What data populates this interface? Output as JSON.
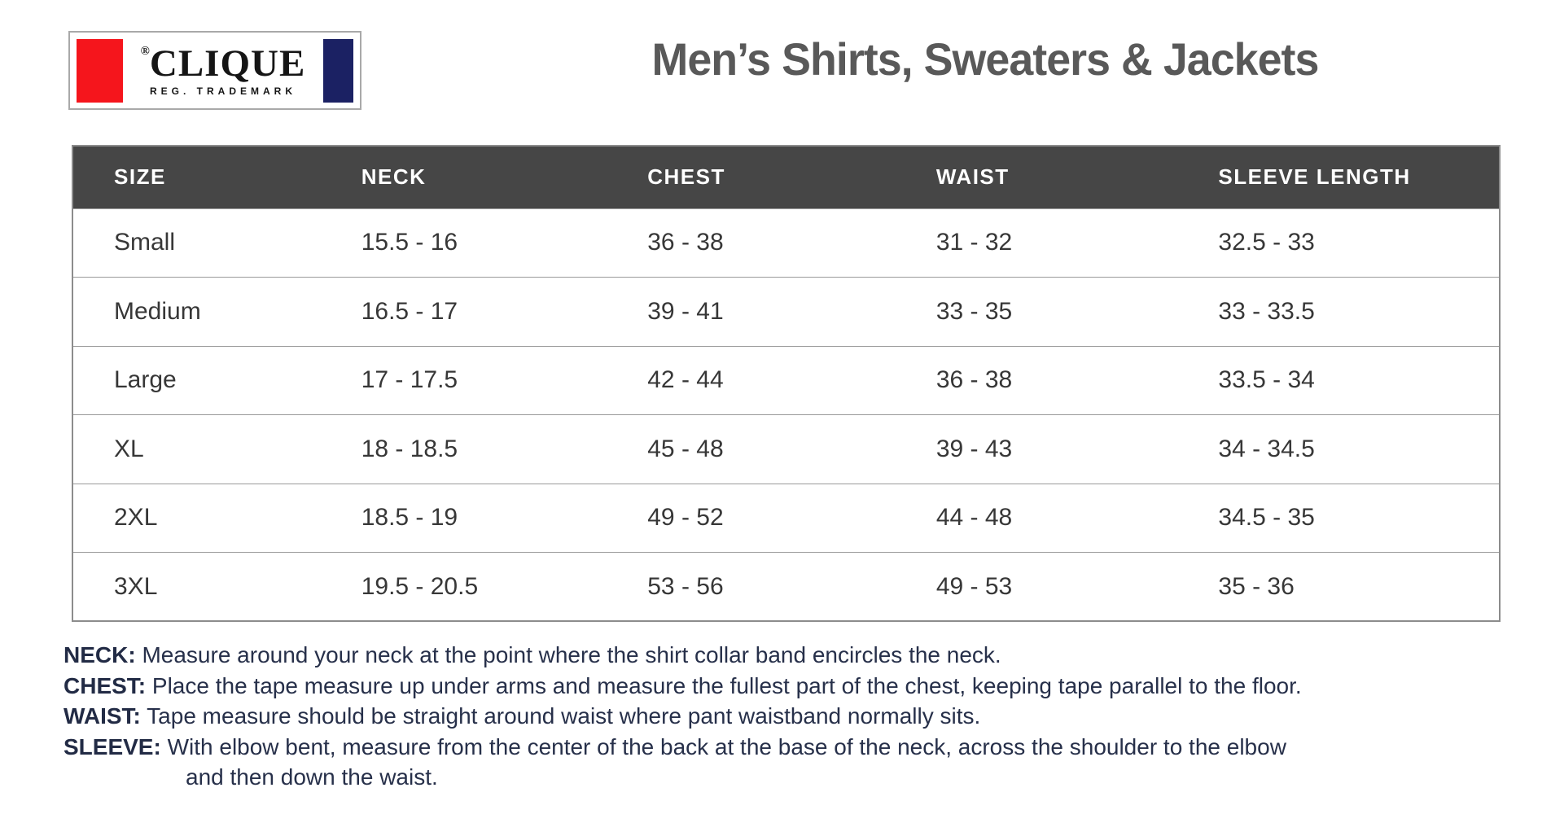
{
  "logo": {
    "registered_mark": "®",
    "brand": "CLIQUE",
    "subtext": "REG. TRADEMARK",
    "red_color": "#f5151c",
    "navy_color": "#1b2163"
  },
  "header": {
    "title": "Men’s Shirts, Sweaters & Jackets",
    "title_color": "#595959"
  },
  "table": {
    "header_bg": "#464646",
    "header_text_color": "#ffffff",
    "columns": [
      "SIZE",
      "NECK",
      "CHEST",
      "WAIST",
      "SLEEVE LENGTH"
    ],
    "rows": [
      {
        "size": "Small",
        "neck": "15.5 - 16",
        "chest": "36 - 38",
        "waist": "31 - 32",
        "sleeve": "32.5 - 33"
      },
      {
        "size": "Medium",
        "neck": "16.5 - 17",
        "chest": "39 - 41",
        "waist": "33 - 35",
        "sleeve": "33 - 33.5"
      },
      {
        "size": "Large",
        "neck": "17 - 17.5",
        "chest": "42 - 44",
        "waist": "36 - 38",
        "sleeve": "33.5 - 34"
      },
      {
        "size": "XL",
        "neck": "18 - 18.5",
        "chest": "45 - 48",
        "waist": "39 - 43",
        "sleeve": "34 - 34.5"
      },
      {
        "size": "2XL",
        "neck": "18.5 - 19",
        "chest": "49 - 52",
        "waist": "44 - 48",
        "sleeve": "34.5 - 35"
      },
      {
        "size": "3XL",
        "neck": "19.5 - 20.5",
        "chest": "53 - 56",
        "waist": "49 - 53",
        "sleeve": "35 - 36"
      }
    ]
  },
  "notes": [
    {
      "label": "NECK:",
      "text": "Measure around your neck at the point where the shirt collar band encircles the neck."
    },
    {
      "label": "CHEST:",
      "text": "Place the tape measure up under arms and measure the fullest part of the chest, keeping tape parallel to the floor."
    },
    {
      "label": "WAIST:",
      "text": "Tape measure should be straight around waist where pant waistband normally sits."
    },
    {
      "label": "SLEEVE:",
      "text": "With elbow bent, measure from the center of the back at the base of the neck, across the shoulder to the elbow",
      "continuation": "and then down the waist."
    }
  ]
}
